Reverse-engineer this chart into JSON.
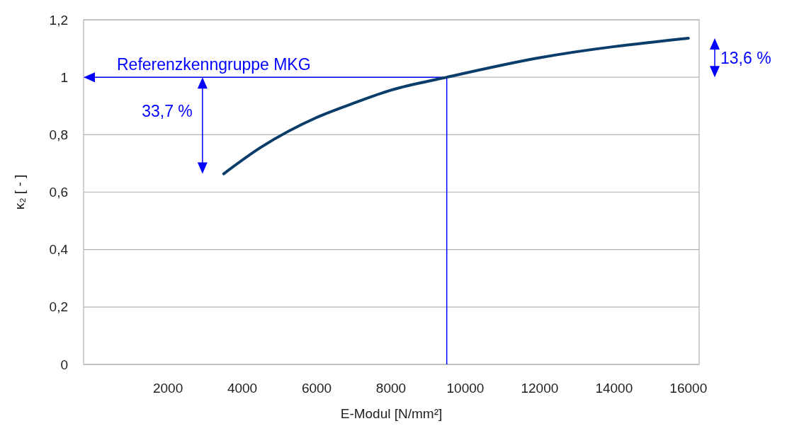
{
  "chart_data": {
    "type": "line",
    "xlabel": "E-Modul [N/mm²]",
    "ylabel": "κ₂ [ - ]",
    "x": [
      3500,
      4500,
      6000,
      7000,
      8000,
      9500,
      12000,
      16000
    ],
    "series": [
      {
        "color": "#0b3d6b",
        "values": [
          0.664,
          0.756,
          0.86,
          0.91,
          0.955,
          1.0,
          1.068,
          1.136
        ]
      }
    ],
    "xlim": [
      -270,
      16290
    ],
    "xticks": [
      2000,
      4000,
      6000,
      8000,
      10000,
      12000,
      14000,
      16000
    ],
    "ylim": [
      0,
      1.2
    ],
    "yticks": [
      0,
      {
        "value": 0.2,
        "label": "0,2"
      },
      {
        "value": 0.4,
        "label": "0,4"
      },
      {
        "value": 0.6,
        "label": "0,6"
      },
      {
        "value": 0.8,
        "label": "0,8"
      },
      1,
      {
        "value": 1.2,
        "label": "1,2"
      }
    ],
    "grid": "y",
    "marker": "none",
    "line_style": "solid",
    "ref_lines": [
      {
        "axis": "y",
        "value": 1,
        "label": "Referenzkenngruppe MKG",
        "color": "#0000ff"
      },
      {
        "axis": "x",
        "value": 9500,
        "color": "#0000ff"
      }
    ],
    "annotations": [
      "33,7 %",
      "13,6 %"
    ]
  }
}
